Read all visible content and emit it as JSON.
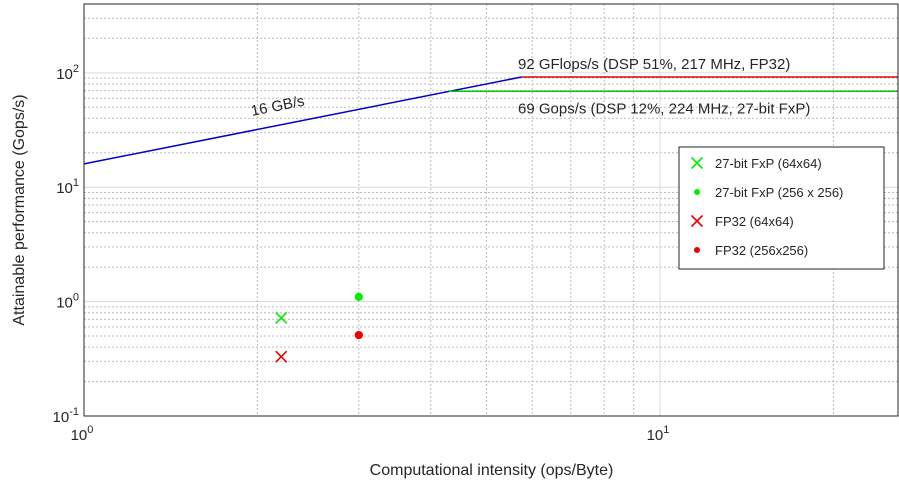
{
  "chart_data": {
    "type": "line",
    "title": "",
    "xlabel": "Computational intensity (ops/Byte)",
    "ylabel": "Attainable performance (Gops/s)",
    "x_scale": "log",
    "y_scale": "log",
    "xlim": [
      1,
      26
    ],
    "ylim": [
      0.1,
      400
    ],
    "grid": true,
    "minor_grid": true,
    "x_ticks": [
      {
        "value": 1,
        "base": "10",
        "exp": "0"
      },
      {
        "value": 10,
        "base": "10",
        "exp": "1"
      }
    ],
    "y_ticks": [
      {
        "value": 0.1,
        "base": "10",
        "exp": "-1"
      },
      {
        "value": 1,
        "base": "10",
        "exp": "0"
      },
      {
        "value": 10,
        "base": "10",
        "exp": "1"
      },
      {
        "value": 100,
        "base": "10",
        "exp": "2"
      }
    ],
    "roofline": {
      "bandwidth_label": "16 GB/s",
      "bandwidth_line": {
        "x": [
          1,
          5.75
        ],
        "y": [
          16,
          92
        ],
        "color": "#0000cc"
      },
      "ceilings": [
        {
          "label": "92 GFlops/s (DSP 51%, 217 MHz, FP32)",
          "y": 92,
          "x": [
            5.75,
            26
          ],
          "color": "#dd0000"
        },
        {
          "label": "69 Gops/s (DSP 12%, 224 MHz, 27-bit FxP)",
          "y": 69,
          "x": [
            4.3,
            26
          ],
          "color": "#00cc00"
        }
      ]
    },
    "series": [
      {
        "name": "27-bit FxP (64x64)",
        "marker": "x",
        "color": "#00ee00",
        "points": [
          {
            "x": 2.2,
            "y": 0.72
          }
        ]
      },
      {
        "name": "27-bit FxP (256 x 256)",
        "marker": "dot",
        "color": "#00ee00",
        "points": [
          {
            "x": 3.0,
            "y": 1.1
          }
        ]
      },
      {
        "name": "FP32 (64x64)",
        "marker": "x",
        "color": "#ee0000",
        "points": [
          {
            "x": 2.2,
            "y": 0.33
          }
        ]
      },
      {
        "name": "FP32 (256x256)",
        "marker": "dot",
        "color": "#ee0000",
        "points": [
          {
            "x": 3.0,
            "y": 0.51
          }
        ]
      }
    ],
    "legend": {
      "position": "right"
    }
  }
}
